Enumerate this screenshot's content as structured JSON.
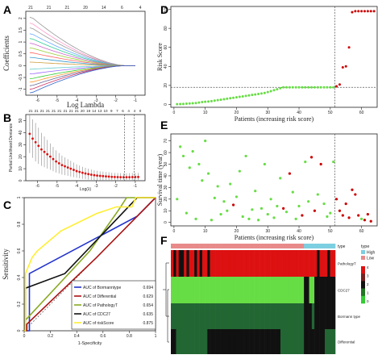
{
  "panel_letters": [
    "A",
    "B",
    "C",
    "D",
    "E",
    "F"
  ],
  "colors": {
    "green": "#33cc33",
    "red": "#cc0000",
    "light_green": "#66dd44",
    "heat_red": "#dd1111",
    "heat_green": "#33aa22",
    "heat_dark_green": "#226633",
    "black": "#111111",
    "high_bar": "#7ccfe0",
    "low_bar": "#e88a8a"
  },
  "chart_data": [
    {
      "panel": "A",
      "type": "line",
      "xlabel": "Log Lambda",
      "ylabel": "Coefficients",
      "xticks": [
        -6,
        -5,
        -4,
        -3,
        -2,
        -1
      ],
      "yticks": [
        -1.0,
        -0.5,
        0.0,
        0.5,
        1.0,
        1.5,
        2.0
      ],
      "top_ticks": [
        "21",
        "21",
        "21",
        "20",
        "14",
        "6",
        "4"
      ],
      "xlim": [
        -6.6,
        -0.5
      ],
      "ylim": [
        -1.25,
        2.3
      ],
      "paths": [
        {
          "start": 2.05,
          "end": 0.0,
          "color": "#999999"
        },
        {
          "start": 1.8,
          "end": 0.0,
          "color": "#ff99cc"
        },
        {
          "start": 1.6,
          "end": 0.0,
          "color": "#999999"
        },
        {
          "start": 1.35,
          "end": 0.0,
          "color": "#66aaff"
        },
        {
          "start": 1.15,
          "end": 0.0,
          "color": "#33cc99"
        },
        {
          "start": 0.95,
          "end": 0.0,
          "color": "#cc66cc"
        },
        {
          "start": 0.75,
          "end": 0.0,
          "color": "#99cc33"
        },
        {
          "start": 0.55,
          "end": 0.0,
          "color": "#ff6666"
        },
        {
          "start": 0.35,
          "end": 0.0,
          "color": "#3399cc"
        },
        {
          "start": 0.15,
          "end": 0.0,
          "color": "#cc9933"
        },
        {
          "start": -0.15,
          "end": 0.0,
          "color": "#66cccc"
        },
        {
          "start": -0.35,
          "end": 0.0,
          "color": "#9966ff"
        },
        {
          "start": -0.55,
          "end": 0.0,
          "color": "#33cc33"
        },
        {
          "start": -0.7,
          "end": 0.0,
          "color": "#ff9933"
        },
        {
          "start": -0.85,
          "end": 0.0,
          "color": "#666699"
        },
        {
          "start": -1.0,
          "end": 0.0,
          "color": "#cc3366"
        },
        {
          "start": -1.15,
          "end": 0.0,
          "color": "#3366cc"
        }
      ]
    },
    {
      "panel": "B",
      "type": "scatter",
      "xlabel": "Log(λ)",
      "ylabel": "Partial Likelihood Deviance",
      "xticks": [
        -6,
        -5,
        -4,
        -3,
        -2,
        -1
      ],
      "yticks": [
        0,
        10,
        20,
        30,
        40,
        50
      ],
      "top_ticks": [
        "21",
        "21",
        "21",
        "21",
        "21",
        "21",
        "21",
        "21",
        "21",
        "20",
        "19",
        "14",
        "13",
        "10",
        "9",
        "7",
        "6",
        "4",
        "4",
        "0"
      ],
      "xlim": [
        -6.6,
        -0.5
      ],
      "ylim": [
        0,
        55
      ],
      "vlines": [
        -1.55,
        -1.05
      ],
      "x": [
        -6.4,
        -6.25,
        -6.1,
        -5.95,
        -5.8,
        -5.65,
        -5.5,
        -5.35,
        -5.2,
        -5.05,
        -4.9,
        -4.75,
        -4.6,
        -4.45,
        -4.3,
        -4.15,
        -4.0,
        -3.85,
        -3.7,
        -3.55,
        -3.4,
        -3.25,
        -3.1,
        -2.95,
        -2.8,
        -2.65,
        -2.5,
        -2.35,
        -2.2,
        -2.05,
        -1.9,
        -1.75,
        -1.6,
        -1.45,
        -1.3,
        -1.15,
        -1.0,
        -0.85
      ],
      "y": [
        39,
        35,
        32,
        29,
        26,
        24,
        22,
        20,
        18,
        16,
        14.5,
        13,
        12,
        11,
        10,
        9,
        8,
        7.3,
        6.6,
        6,
        5.5,
        5,
        4.6,
        4.3,
        4,
        3.8,
        3.6,
        3.4,
        3.2,
        3.1,
        3,
        2.95,
        2.9,
        2.9,
        2.95,
        3,
        3.05,
        3.1
      ]
    },
    {
      "panel": "C",
      "type": "line",
      "xlabel": "1-Specificity",
      "ylabel": "Sensitivity",
      "xticks": [
        0.0,
        0.2,
        0.4,
        0.6,
        0.8,
        1.0
      ],
      "yticks": [
        0.0,
        0.2,
        0.4,
        0.6,
        0.8,
        1.0
      ],
      "xlim": [
        0,
        1
      ],
      "ylim": [
        0,
        1
      ],
      "legend_placement": "bottom-right",
      "series": [
        {
          "name": "AUC of Bormanntype",
          "auc": "0.694",
          "color": "#2233cc",
          "x": [
            0,
            0.04,
            0.04,
            0.86,
            1
          ],
          "y": [
            0,
            0,
            0.43,
            0.86,
            1
          ]
        },
        {
          "name": "AUC of Differential",
          "auc": "0.629",
          "color": "#aa1111",
          "x": [
            0,
            0.02,
            0.02,
            0.55,
            1
          ],
          "y": [
            0,
            0,
            0.05,
            0.55,
            1
          ]
        },
        {
          "name": "AUC of PathologyT",
          "auc": "0.654",
          "color": "#88aa22",
          "x": [
            0,
            0.01,
            0.01,
            0.5,
            0.72,
            0.78,
            1
          ],
          "y": [
            0,
            0,
            0.08,
            0.6,
            0.91,
            1,
            1
          ]
        },
        {
          "name": "AUC of CDC27",
          "auc": "0.635",
          "color": "#111111",
          "x": [
            0,
            0.01,
            0.01,
            0.31,
            0.86,
            1
          ],
          "y": [
            0,
            0,
            0.32,
            0.43,
            1,
            1
          ]
        },
        {
          "name": "AUC of riskScore",
          "auc": "0.875",
          "color": "#ffee33",
          "x": [
            0,
            0.01,
            0.01,
            0.06,
            0.1,
            0.28,
            0.55,
            0.7,
            0.82,
            0.85,
            1
          ],
          "y": [
            0,
            0,
            0.43,
            0.55,
            0.6,
            0.75,
            0.88,
            0.93,
            0.93,
            1,
            1
          ]
        }
      ]
    },
    {
      "panel": "D",
      "type": "scatter",
      "xlabel": "Patients (increasing risk score)",
      "ylabel": "Risk Score",
      "xticks": [
        0,
        10,
        20,
        30,
        40,
        50,
        60
      ],
      "yticks": [
        0,
        20,
        40,
        60,
        80,
        100
      ],
      "xlim": [
        -1,
        65
      ],
      "ylim": [
        -3,
        103
      ],
      "cutoff_x": 51.5,
      "cutoff_y": 18,
      "low_values": [
        0.3,
        0.4,
        0.5,
        0.8,
        1,
        1.2,
        1.5,
        2,
        2.5,
        2.8,
        3,
        3.5,
        4,
        4.5,
        5,
        5.5,
        6,
        6.5,
        7,
        7.5,
        8,
        8.5,
        9,
        9.5,
        10,
        10.5,
        11,
        11.5,
        12,
        13,
        14,
        15,
        16,
        17,
        18,
        18,
        18,
        18,
        18,
        18,
        18,
        18,
        18,
        18,
        18,
        18,
        18,
        18,
        18,
        18,
        18
      ],
      "high_values": [
        19,
        21,
        39,
        40,
        60,
        97,
        98,
        98,
        98,
        98,
        98,
        98,
        98
      ]
    },
    {
      "panel": "E",
      "type": "scatter",
      "xlabel": "Patients (increasing risk score)",
      "ylabel": "Survival time (year)",
      "xticks": [
        0,
        10,
        20,
        30,
        40,
        50,
        60
      ],
      "yticks": [
        0,
        10,
        20,
        30,
        40,
        50,
        60,
        70
      ],
      "xlim": [
        -1,
        65
      ],
      "ylim": [
        -3,
        76
      ],
      "cutoff_x": 51.5,
      "points": [
        {
          "x": 1,
          "y": 20,
          "s": "alive"
        },
        {
          "x": 2,
          "y": 65,
          "s": "alive"
        },
        {
          "x": 3,
          "y": 57,
          "s": "alive"
        },
        {
          "x": 4,
          "y": 8,
          "s": "alive"
        },
        {
          "x": 5,
          "y": 47,
          "s": "alive"
        },
        {
          "x": 6,
          "y": 61,
          "s": "alive"
        },
        {
          "x": 7,
          "y": 3,
          "s": "alive"
        },
        {
          "x": 8,
          "y": 50,
          "s": "alive"
        },
        {
          "x": 9,
          "y": 36,
          "s": "alive"
        },
        {
          "x": 10,
          "y": 70,
          "s": "alive"
        },
        {
          "x": 11,
          "y": 42,
          "s": "alive"
        },
        {
          "x": 12,
          "y": 2,
          "s": "alive"
        },
        {
          "x": 13,
          "y": 21,
          "s": "alive"
        },
        {
          "x": 14,
          "y": 31,
          "s": "alive"
        },
        {
          "x": 15,
          "y": 7,
          "s": "alive"
        },
        {
          "x": 16,
          "y": 18,
          "s": "alive"
        },
        {
          "x": 17,
          "y": 10,
          "s": "alive"
        },
        {
          "x": 18,
          "y": 33,
          "s": "alive"
        },
        {
          "x": 19,
          "y": 15,
          "s": "dead"
        },
        {
          "x": 20,
          "y": 22,
          "s": "alive"
        },
        {
          "x": 21,
          "y": 44,
          "s": "alive"
        },
        {
          "x": 22,
          "y": 5,
          "s": "alive"
        },
        {
          "x": 23,
          "y": 57,
          "s": "alive"
        },
        {
          "x": 24,
          "y": 3,
          "s": "alive"
        },
        {
          "x": 25,
          "y": 11,
          "s": "alive"
        },
        {
          "x": 26,
          "y": 27,
          "s": "alive"
        },
        {
          "x": 27,
          "y": 2,
          "s": "alive"
        },
        {
          "x": 28,
          "y": 12,
          "s": "alive"
        },
        {
          "x": 29,
          "y": 50,
          "s": "alive"
        },
        {
          "x": 30,
          "y": 7,
          "s": "alive"
        },
        {
          "x": 31,
          "y": 20,
          "s": "alive"
        },
        {
          "x": 32,
          "y": 4,
          "s": "alive"
        },
        {
          "x": 33,
          "y": 14,
          "s": "alive"
        },
        {
          "x": 34,
          "y": 38,
          "s": "alive"
        },
        {
          "x": 35,
          "y": 12,
          "s": "dead"
        },
        {
          "x": 36,
          "y": 9,
          "s": "alive"
        },
        {
          "x": 37,
          "y": 42,
          "s": "dead"
        },
        {
          "x": 38,
          "y": 26,
          "s": "alive"
        },
        {
          "x": 39,
          "y": 3,
          "s": "alive"
        },
        {
          "x": 40,
          "y": 14,
          "s": "alive"
        },
        {
          "x": 41,
          "y": 6,
          "s": "dead"
        },
        {
          "x": 42,
          "y": 52,
          "s": "alive"
        },
        {
          "x": 43,
          "y": 18,
          "s": "alive"
        },
        {
          "x": 44,
          "y": 56,
          "s": "dead"
        },
        {
          "x": 45,
          "y": 10,
          "s": "dead"
        },
        {
          "x": 46,
          "y": 24,
          "s": "alive"
        },
        {
          "x": 47,
          "y": 50,
          "s": "dead"
        },
        {
          "x": 48,
          "y": 16,
          "s": "alive"
        },
        {
          "x": 49,
          "y": 5,
          "s": "alive"
        },
        {
          "x": 50,
          "y": 8,
          "s": "alive"
        },
        {
          "x": 51,
          "y": 52,
          "s": "alive"
        },
        {
          "x": 52,
          "y": 20,
          "s": "dead"
        },
        {
          "x": 53,
          "y": 10,
          "s": "dead"
        },
        {
          "x": 54,
          "y": 6,
          "s": "dead"
        },
        {
          "x": 55,
          "y": 16,
          "s": "dead"
        },
        {
          "x": 56,
          "y": 4,
          "s": "dead"
        },
        {
          "x": 57,
          "y": 28,
          "s": "dead"
        },
        {
          "x": 58,
          "y": 24,
          "s": "dead"
        },
        {
          "x": 59,
          "y": 6,
          "s": "dead"
        },
        {
          "x": 60,
          "y": 3,
          "s": "alive"
        },
        {
          "x": 61,
          "y": 2,
          "s": "dead"
        },
        {
          "x": 62,
          "y": 7,
          "s": "dead"
        },
        {
          "x": 63,
          "y": 1,
          "s": "dead"
        }
      ]
    },
    {
      "panel": "F",
      "type": "heatmap",
      "rows": [
        "PathologyT",
        "CDC27",
        "Bormann type",
        "Differential"
      ],
      "annotation_label": "type",
      "legend_title": "type",
      "legend_entries": [
        {
          "label": "High",
          "color": "#7ccfe0"
        },
        {
          "label": "Low",
          "color": "#e88a8a"
        }
      ],
      "colorbar_ticks": [
        "4",
        "3",
        "2",
        "1",
        "0"
      ],
      "n_low": 51,
      "n_high": 12,
      "pathology": [
        0,
        1,
        0,
        1,
        1,
        0,
        1,
        0,
        0,
        1,
        0,
        1,
        0,
        0,
        1,
        0,
        0,
        0,
        0,
        0,
        0,
        0,
        0,
        0,
        0,
        0,
        0,
        0,
        0,
        0,
        0,
        0,
        0,
        0,
        0,
        0,
        0,
        0,
        0,
        0,
        0,
        0,
        0,
        0,
        0,
        0,
        0,
        0,
        0,
        0,
        0,
        0,
        0,
        0,
        0,
        0,
        1,
        0,
        0,
        0,
        1,
        0,
        0
      ],
      "cdc27": [
        0,
        0,
        0,
        0,
        0,
        0,
        0,
        0,
        0,
        0,
        0,
        0,
        0,
        0,
        0,
        0,
        0,
        0,
        0,
        0,
        0,
        0,
        0,
        0,
        0,
        0,
        0,
        0,
        0,
        0,
        0,
        0,
        0,
        0,
        0,
        0,
        0,
        0,
        0,
        0,
        0,
        0,
        0,
        0,
        0,
        0,
        0,
        0,
        0,
        0,
        0,
        1,
        1,
        0,
        0,
        1,
        1,
        1,
        1,
        1,
        1,
        1,
        1
      ],
      "bormann": [
        0,
        0,
        0,
        0,
        0,
        0,
        0,
        0,
        0,
        0,
        0,
        0,
        0,
        0,
        0,
        0,
        0,
        0,
        0,
        0,
        0,
        0,
        0,
        0,
        0,
        0,
        0,
        0,
        0,
        0,
        0,
        0,
        0,
        0,
        0,
        0,
        0,
        0,
        0,
        0,
        0,
        0,
        0,
        0,
        0,
        0,
        0,
        0,
        0,
        0,
        0,
        1,
        1,
        1,
        0,
        1,
        1,
        1,
        1,
        1,
        1,
        1,
        1
      ],
      "differential": [
        1,
        1,
        0,
        0,
        0,
        0,
        0,
        0,
        0,
        0,
        0,
        0,
        0,
        0,
        1,
        1,
        1,
        1,
        1,
        1,
        1,
        1,
        1,
        1,
        1,
        1,
        1,
        1,
        1,
        1,
        1,
        1,
        1,
        1,
        1,
        1,
        1,
        1,
        1,
        1,
        1,
        1,
        0,
        0,
        0,
        0,
        0,
        0,
        0,
        0,
        0,
        1,
        1,
        1,
        1,
        1,
        1,
        1,
        1,
        0,
        0,
        0,
        0
      ]
    }
  ]
}
